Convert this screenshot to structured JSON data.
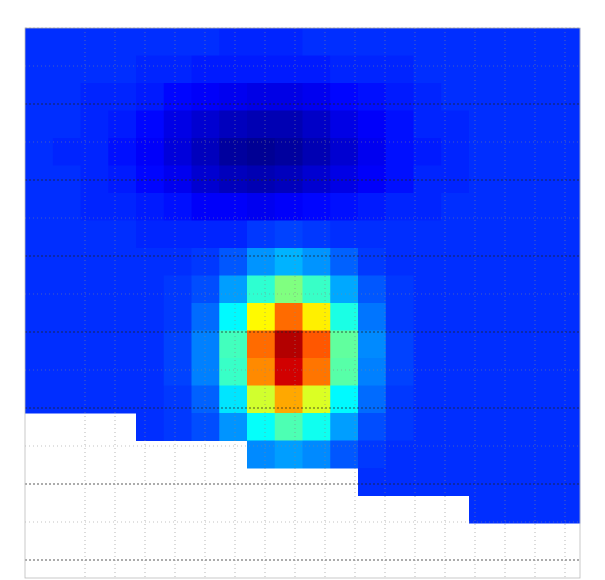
{
  "chart_data": {
    "type": "heatmap",
    "colormap": "jet",
    "vlim": [
      0,
      1
    ],
    "grid": true,
    "values": [
      [
        0.17,
        0.17,
        0.17,
        0.17,
        0.17,
        0.17,
        0.17,
        0.16,
        0.16,
        0.16,
        0.17,
        0.17,
        0.17,
        0.17,
        0.17,
        0.17,
        0.17,
        0.17,
        0.17,
        0.17
      ],
      [
        0.17,
        0.17,
        0.17,
        0.17,
        0.16,
        0.16,
        0.15,
        0.15,
        0.15,
        0.15,
        0.15,
        0.16,
        0.16,
        0.16,
        0.17,
        0.17,
        0.17,
        0.17,
        0.17,
        0.17
      ],
      [
        0.17,
        0.17,
        0.16,
        0.16,
        0.15,
        0.13,
        0.12,
        0.11,
        0.1,
        0.1,
        0.11,
        0.13,
        0.14,
        0.15,
        0.16,
        0.17,
        0.17,
        0.17,
        0.17,
        0.17
      ],
      [
        0.17,
        0.17,
        0.16,
        0.15,
        0.13,
        0.1,
        0.08,
        0.06,
        0.05,
        0.05,
        0.07,
        0.1,
        0.12,
        0.14,
        0.16,
        0.16,
        0.17,
        0.17,
        0.17,
        0.17
      ],
      [
        0.17,
        0.16,
        0.16,
        0.14,
        0.12,
        0.09,
        0.06,
        0.03,
        0.02,
        0.03,
        0.05,
        0.08,
        0.11,
        0.14,
        0.15,
        0.16,
        0.17,
        0.17,
        0.17,
        0.17
      ],
      [
        0.17,
        0.17,
        0.16,
        0.15,
        0.13,
        0.11,
        0.08,
        0.06,
        0.05,
        0.06,
        0.08,
        0.1,
        0.12,
        0.14,
        0.16,
        0.16,
        0.17,
        0.17,
        0.17,
        0.17
      ],
      [
        0.17,
        0.17,
        0.16,
        0.16,
        0.15,
        0.14,
        0.12,
        0.12,
        0.11,
        0.12,
        0.13,
        0.14,
        0.15,
        0.16,
        0.16,
        0.17,
        0.17,
        0.17,
        0.17,
        0.17
      ],
      [
        0.17,
        0.17,
        0.17,
        0.17,
        0.16,
        0.16,
        0.16,
        0.16,
        0.18,
        0.19,
        0.18,
        0.17,
        0.17,
        0.17,
        0.17,
        0.17,
        0.17,
        0.17,
        0.17,
        0.17
      ],
      [
        0.17,
        0.17,
        0.17,
        0.17,
        0.17,
        0.17,
        0.18,
        0.21,
        0.27,
        0.3,
        0.27,
        0.22,
        0.18,
        0.17,
        0.17,
        0.17,
        0.17,
        0.17,
        0.17,
        0.17
      ],
      [
        0.17,
        0.17,
        0.17,
        0.17,
        0.17,
        0.18,
        0.2,
        0.28,
        0.42,
        0.5,
        0.43,
        0.29,
        0.21,
        0.18,
        0.17,
        0.17,
        0.17,
        0.17,
        0.17,
        0.17
      ],
      [
        0.17,
        0.17,
        0.17,
        0.17,
        0.17,
        0.18,
        0.23,
        0.37,
        0.63,
        0.77,
        0.64,
        0.4,
        0.24,
        0.18,
        0.17,
        0.17,
        0.17,
        0.17,
        0.17,
        0.17
      ],
      [
        0.17,
        0.17,
        0.17,
        0.17,
        0.17,
        0.19,
        0.25,
        0.44,
        0.77,
        0.95,
        0.79,
        0.47,
        0.26,
        0.19,
        0.17,
        0.17,
        0.17,
        0.17,
        0.17,
        0.17
      ],
      [
        0.17,
        0.17,
        0.17,
        0.17,
        0.17,
        0.19,
        0.25,
        0.43,
        0.74,
        0.92,
        0.76,
        0.46,
        0.25,
        0.19,
        0.17,
        0.17,
        0.17,
        0.17,
        0.17,
        0.17
      ],
      [
        0.17,
        0.17,
        0.17,
        0.17,
        0.17,
        0.18,
        0.22,
        0.35,
        0.58,
        0.71,
        0.59,
        0.37,
        0.23,
        0.18,
        0.17,
        0.17,
        0.17,
        0.17,
        0.17,
        0.17
      ],
      [
        null,
        null,
        null,
        null,
        0.17,
        0.18,
        0.2,
        0.27,
        0.38,
        0.45,
        0.39,
        0.28,
        0.2,
        0.18,
        0.17,
        0.17,
        0.17,
        0.17,
        0.17,
        0.17
      ],
      [
        null,
        null,
        null,
        null,
        null,
        null,
        null,
        null,
        0.26,
        0.28,
        0.26,
        0.21,
        0.18,
        0.17,
        0.17,
        0.17,
        0.17,
        0.17,
        0.17,
        0.17
      ],
      [
        null,
        null,
        null,
        null,
        null,
        null,
        null,
        null,
        null,
        null,
        null,
        null,
        0.17,
        0.17,
        0.17,
        0.17,
        0.17,
        0.17,
        0.17,
        0.17
      ],
      [
        null,
        null,
        null,
        null,
        null,
        null,
        null,
        null,
        null,
        null,
        null,
        null,
        null,
        null,
        null,
        null,
        0.17,
        0.17,
        0.17,
        0.17
      ],
      [
        null,
        null,
        null,
        null,
        null,
        null,
        null,
        null,
        null,
        null,
        null,
        null,
        null,
        null,
        null,
        null,
        null,
        null,
        null,
        null
      ],
      [
        null,
        null,
        null,
        null,
        null,
        null,
        null,
        null,
        null,
        null,
        null,
        null,
        null,
        null,
        null,
        null,
        null,
        null,
        null,
        null
      ]
    ]
  }
}
